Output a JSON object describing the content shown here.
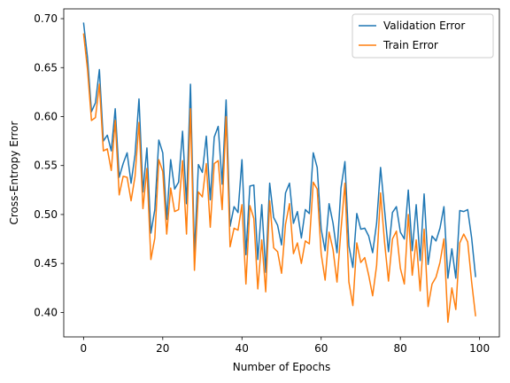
{
  "chart_data": {
    "type": "line",
    "title": "",
    "xlabel": "Number of Epochs",
    "ylabel": "Cross-Entropy Error",
    "xlim": [
      -5,
      105
    ],
    "ylim": [
      0.375,
      0.71
    ],
    "xticks": [
      0,
      20,
      40,
      60,
      80,
      100
    ],
    "yticks": [
      0.4,
      0.45,
      0.5,
      0.55,
      0.6,
      0.65,
      0.7
    ],
    "grid": false,
    "legend_position": "top-right",
    "series": [
      {
        "name": "Validation Error",
        "color": "#1f77b4",
        "values": [
          0.696,
          0.66,
          0.605,
          0.614,
          0.648,
          0.575,
          0.581,
          0.565,
          0.608,
          0.538,
          0.552,
          0.563,
          0.532,
          0.561,
          0.618,
          0.523,
          0.568,
          0.481,
          0.505,
          0.576,
          0.563,
          0.495,
          0.556,
          0.526,
          0.533,
          0.585,
          0.511,
          0.633,
          0.459,
          0.551,
          0.543,
          0.58,
          0.515,
          0.579,
          0.59,
          0.531,
          0.617,
          0.488,
          0.508,
          0.502,
          0.556,
          0.459,
          0.529,
          0.53,
          0.454,
          0.51,
          0.441,
          0.532,
          0.497,
          0.489,
          0.469,
          0.522,
          0.532,
          0.491,
          0.503,
          0.476,
          0.505,
          0.501,
          0.563,
          0.548,
          0.485,
          0.463,
          0.511,
          0.491,
          0.461,
          0.527,
          0.554,
          0.468,
          0.446,
          0.501,
          0.485,
          0.486,
          0.478,
          0.461,
          0.491,
          0.548,
          0.505,
          0.462,
          0.502,
          0.508,
          0.482,
          0.475,
          0.525,
          0.463,
          0.51,
          0.453,
          0.521,
          0.449,
          0.478,
          0.473,
          0.486,
          0.508,
          0.435,
          0.465,
          0.435,
          0.504,
          0.503,
          0.505,
          0.476,
          0.436
        ]
      },
      {
        "name": "Train Error",
        "color": "#ff7f0e",
        "values": [
          0.685,
          0.648,
          0.596,
          0.599,
          0.633,
          0.565,
          0.567,
          0.545,
          0.596,
          0.52,
          0.539,
          0.538,
          0.514,
          0.539,
          0.594,
          0.506,
          0.547,
          0.454,
          0.476,
          0.556,
          0.544,
          0.48,
          0.527,
          0.503,
          0.505,
          0.555,
          0.48,
          0.608,
          0.443,
          0.523,
          0.518,
          0.552,
          0.487,
          0.552,
          0.555,
          0.505,
          0.6,
          0.467,
          0.486,
          0.484,
          0.51,
          0.429,
          0.509,
          0.496,
          0.424,
          0.474,
          0.421,
          0.514,
          0.466,
          0.462,
          0.44,
          0.49,
          0.511,
          0.46,
          0.471,
          0.45,
          0.473,
          0.47,
          0.533,
          0.526,
          0.46,
          0.433,
          0.482,
          0.464,
          0.431,
          0.484,
          0.532,
          0.431,
          0.407,
          0.471,
          0.451,
          0.456,
          0.438,
          0.417,
          0.448,
          0.522,
          0.472,
          0.432,
          0.475,
          0.483,
          0.445,
          0.429,
          0.5,
          0.438,
          0.474,
          0.422,
          0.485,
          0.406,
          0.429,
          0.436,
          0.451,
          0.475,
          0.39,
          0.425,
          0.403,
          0.471,
          0.48,
          0.472,
          0.431,
          0.396
        ]
      }
    ]
  }
}
